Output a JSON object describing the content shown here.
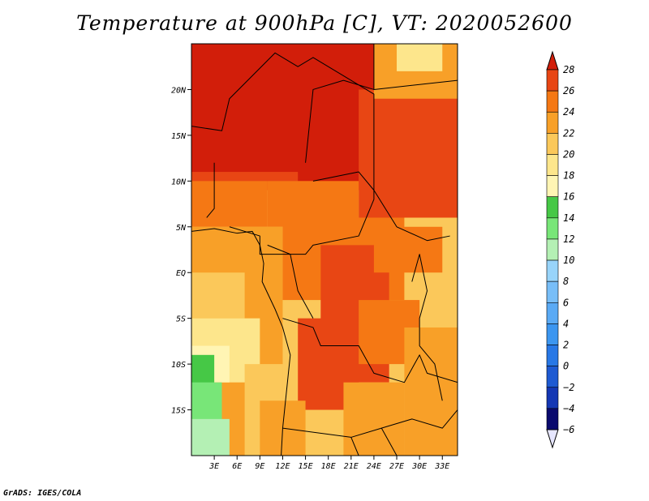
{
  "chart_data": {
    "type": "heatmap",
    "title": "Temperature at 900hPa [C], VT: 2020052600",
    "credit": "GrADS: IGES/COLA",
    "xlabel": "",
    "ylabel": "",
    "x_ticks": [
      "3E",
      "6E",
      "9E",
      "12E",
      "15E",
      "18E",
      "21E",
      "24E",
      "27E",
      "30E",
      "33E"
    ],
    "x_tick_values": [
      3,
      6,
      9,
      12,
      15,
      18,
      21,
      24,
      27,
      30,
      33
    ],
    "y_ticks": [
      "20N",
      "15N",
      "10N",
      "5N",
      "EQ",
      "5S",
      "10S",
      "15S"
    ],
    "y_tick_values": [
      20,
      15,
      10,
      5,
      0,
      -5,
      -10,
      -15
    ],
    "xlim": [
      0,
      35
    ],
    "ylim": [
      -20,
      25
    ],
    "colorbar": {
      "levels": [
        -6,
        -4,
        -2,
        0,
        2,
        4,
        6,
        8,
        10,
        12,
        14,
        16,
        18,
        20,
        22,
        24,
        26,
        28
      ],
      "colors": [
        "#0a0a6e",
        "#1437b4",
        "#1e5ad2",
        "#2878e6",
        "#3c96f0",
        "#5aaaf5",
        "#78bef8",
        "#98d4fa",
        "#b4f0b4",
        "#78e678",
        "#46c846",
        "#fff5b4",
        "#fde68c",
        "#fbc85a",
        "#f8a028",
        "#f57814",
        "#e84614",
        "#d21e0a",
        "#e6e6ff"
      ],
      "under_color": "#e6e6ff",
      "over_color": "#d21e0a"
    }
  }
}
